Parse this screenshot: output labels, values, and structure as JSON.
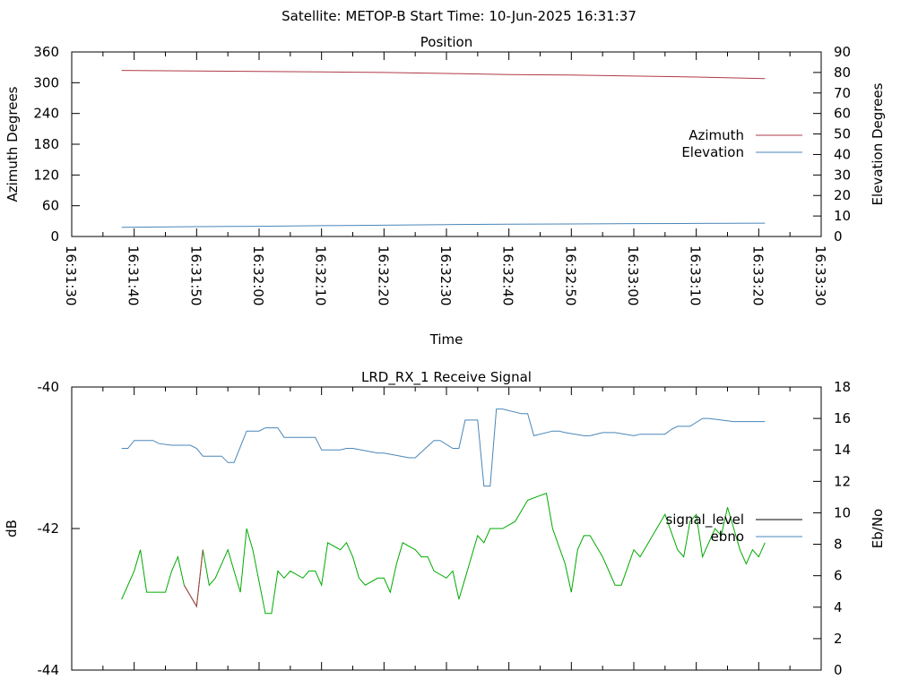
{
  "header": {
    "title": "Satellite: METOP-B    Start Time: 10-Jun-2025 16:31:37"
  },
  "chart_data": [
    {
      "type": "line",
      "title": "Position",
      "xlabel": "Time",
      "ylabel": "Azimuth Degrees",
      "y2label": "Elevation Degrees",
      "x_ticks": [
        "16:31:30",
        "16:31:40",
        "16:31:50",
        "16:32:00",
        "16:32:10",
        "16:32:20",
        "16:32:30",
        "16:32:40",
        "16:32:50",
        "16:33:00",
        "16:33:10",
        "16:33:20",
        "16:33:30"
      ],
      "y_ticks": [
        "0",
        "60",
        "120",
        "180",
        "240",
        "300",
        "360"
      ],
      "y2_ticks": [
        "0",
        "10",
        "20",
        "30",
        "40",
        "50",
        "60",
        "70",
        "80",
        "90"
      ],
      "ylim": [
        0,
        360
      ],
      "y2lim": [
        0,
        90
      ],
      "legend_position": "right",
      "series": [
        {
          "name": "Azimuth",
          "axis": "y",
          "color": "#b03a48",
          "x": [
            "16:31:38",
            "16:31:50",
            "16:32:00",
            "16:32:10",
            "16:32:20",
            "16:32:30",
            "16:32:40",
            "16:32:50",
            "16:33:00",
            "16:33:10",
            "16:33:21"
          ],
          "values": [
            324,
            323,
            322,
            321,
            320,
            318,
            316,
            315,
            313,
            311,
            308
          ]
        },
        {
          "name": "Elevation",
          "axis": "y2",
          "color": "#4a86b8",
          "x": [
            "16:31:38",
            "16:31:50",
            "16:32:00",
            "16:32:10",
            "16:32:20",
            "16:32:30",
            "16:32:40",
            "16:32:50",
            "16:33:00",
            "16:33:10",
            "16:33:21"
          ],
          "values": [
            4.5,
            4.8,
            5.0,
            5.3,
            5.5,
            5.8,
            6.0,
            6.1,
            6.3,
            6.4,
            6.5
          ]
        }
      ]
    },
    {
      "type": "line",
      "title": "LRD_RX_1 Receive Signal",
      "xlabel": "",
      "ylabel": "dB",
      "y2label": "Eb/No",
      "y_ticks": [
        "-44",
        "-42",
        "-40"
      ],
      "y2_ticks": [
        "0",
        "2",
        "4",
        "6",
        "8",
        "10",
        "12",
        "14",
        "16",
        "18"
      ],
      "ylim": [
        -44,
        -40
      ],
      "y2lim": [
        0,
        18
      ],
      "legend_position": "right",
      "series": [
        {
          "name": "signal_level",
          "axis": "y",
          "color": "#000000",
          "x": [],
          "values": []
        },
        {
          "name": "ebno",
          "axis": "y2",
          "color": "#4a86b8",
          "x": [
            "16:31:38",
            "16:31:39",
            "16:31:40",
            "16:31:43",
            "16:31:44",
            "16:31:46",
            "16:31:49",
            "16:31:50",
            "16:31:51",
            "16:31:54",
            "16:31:55",
            "16:31:56",
            "16:31:58",
            "16:32:00",
            "16:32:01",
            "16:32:03",
            "16:32:04",
            "16:32:09",
            "16:32:10",
            "16:32:13",
            "16:32:14",
            "16:32:15",
            "16:32:19",
            "16:32:20",
            "16:32:24",
            "16:32:25",
            "16:32:28",
            "16:32:29",
            "16:32:31",
            "16:32:32",
            "16:32:33",
            "16:32:35",
            "16:32:36",
            "16:32:37",
            "16:32:38",
            "16:32:39",
            "16:32:42",
            "16:32:43",
            "16:32:44",
            "16:32:47",
            "16:32:48",
            "16:32:49",
            "16:32:52",
            "16:32:53",
            "16:32:55",
            "16:32:57",
            "16:33:00",
            "16:33:01",
            "16:33:05",
            "16:33:06",
            "16:33:07",
            "16:33:09",
            "16:33:11",
            "16:33:12",
            "16:33:14",
            "16:33:16",
            "16:33:18",
            "16:33:21"
          ],
          "values": [
            14.1,
            14.1,
            14.6,
            14.6,
            14.4,
            14.3,
            14.3,
            14.1,
            13.6,
            13.6,
            13.2,
            13.2,
            15.2,
            15.2,
            15.4,
            15.4,
            14.8,
            14.8,
            14.0,
            14.0,
            14.1,
            14.1,
            13.8,
            13.8,
            13.5,
            13.5,
            14.6,
            14.6,
            14.1,
            14.1,
            15.9,
            15.9,
            11.7,
            11.7,
            16.6,
            16.6,
            16.3,
            16.3,
            14.9,
            15.2,
            15.2,
            15.1,
            14.9,
            14.9,
            15.1,
            15.1,
            14.9,
            15.0,
            15.0,
            15.3,
            15.5,
            15.5,
            16.0,
            16.0,
            15.9,
            15.8,
            15.8,
            15.8
          ]
        },
        {
          "name": "",
          "axis": "y",
          "color": "#00aa00",
          "x": [
            "16:31:38",
            "16:31:40",
            "16:31:41",
            "16:31:42",
            "16:31:43",
            "16:31:45",
            "16:31:46",
            "16:31:47",
            "16:31:48",
            "16:31:50",
            "16:31:51",
            "16:31:52",
            "16:31:53",
            "16:31:55",
            "16:31:56",
            "16:31:57",
            "16:31:58",
            "16:31:59",
            "16:32:01",
            "16:32:02",
            "16:32:03",
            "16:32:04",
            "16:32:05",
            "16:32:07",
            "16:32:08",
            "16:32:09",
            "16:32:10",
            "16:32:11",
            "16:32:13",
            "16:32:14",
            "16:32:15",
            "16:32:16",
            "16:32:17",
            "16:32:19",
            "16:32:20",
            "16:32:21",
            "16:32:22",
            "16:32:23",
            "16:32:25",
            "16:32:26",
            "16:32:27",
            "16:32:28",
            "16:32:30",
            "16:32:31",
            "16:32:32",
            "16:32:33",
            "16:32:35",
            "16:32:36",
            "16:32:37",
            "16:32:39",
            "16:32:41",
            "16:32:43",
            "16:32:46",
            "16:32:47",
            "16:32:49",
            "16:32:50",
            "16:32:51",
            "16:32:52",
            "16:32:53",
            "16:32:55",
            "16:32:57",
            "16:32:58",
            "16:33:00",
            "16:33:01",
            "16:33:03",
            "16:33:05",
            "16:33:07",
            "16:33:08",
            "16:33:09",
            "16:33:10",
            "16:33:11",
            "16:33:13",
            "16:33:14",
            "16:33:15",
            "16:33:16",
            "16:33:17",
            "16:33:18",
            "16:33:19",
            "16:33:20",
            "16:33:21"
          ],
          "values": [
            -43.0,
            -42.6,
            -42.3,
            -42.9,
            -42.9,
            -42.9,
            -42.6,
            -42.4,
            -42.8,
            -43.1,
            -42.3,
            -42.8,
            -42.7,
            -42.3,
            -42.6,
            -42.9,
            -42.0,
            -42.3,
            -43.2,
            -43.2,
            -42.6,
            -42.7,
            -42.6,
            -42.7,
            -42.6,
            -42.6,
            -42.8,
            -42.2,
            -42.3,
            -42.2,
            -42.4,
            -42.7,
            -42.8,
            -42.7,
            -42.7,
            -42.9,
            -42.5,
            -42.2,
            -42.3,
            -42.4,
            -42.4,
            -42.6,
            -42.7,
            -42.6,
            -43.0,
            -42.7,
            -42.1,
            -42.2,
            -42.0,
            -42.0,
            -41.9,
            -41.6,
            -41.5,
            -42.0,
            -42.5,
            -42.9,
            -42.3,
            -42.1,
            -42.1,
            -42.4,
            -42.8,
            -42.8,
            -42.3,
            -42.4,
            -42.1,
            -41.8,
            -42.3,
            -42.4,
            -41.9,
            -41.8,
            -42.4,
            -42.0,
            -42.1,
            -41.7,
            -42.0,
            -42.3,
            -42.5,
            -42.3,
            -42.4,
            -42.2
          ]
        }
      ],
      "extra_marks_color": "#b03a48"
    }
  ]
}
